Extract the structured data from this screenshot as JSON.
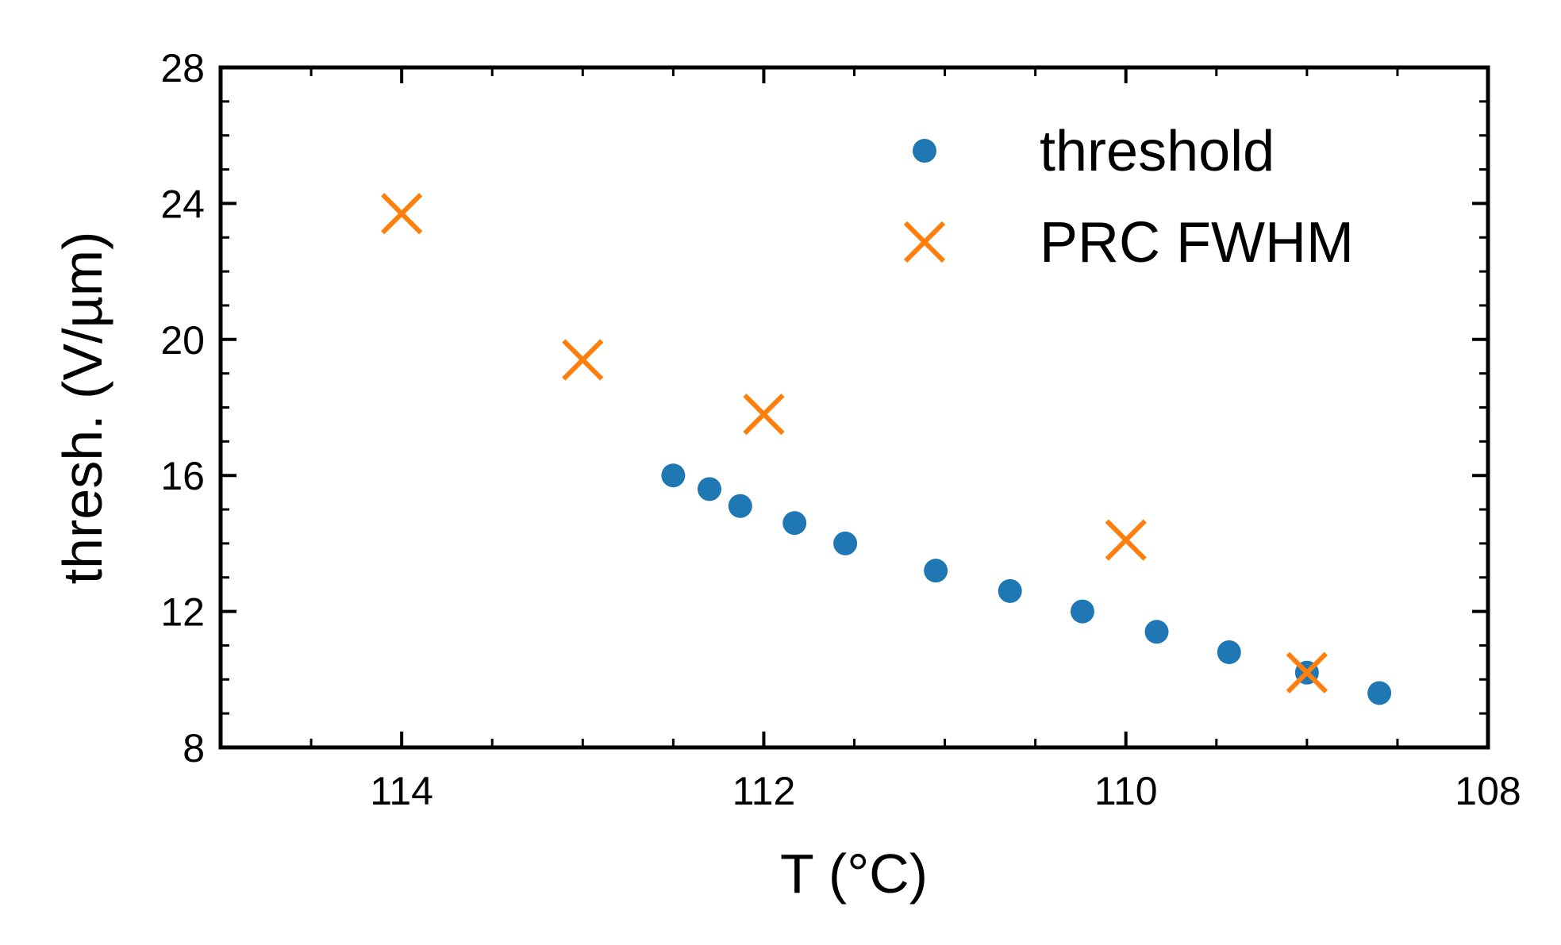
{
  "chart_data": {
    "type": "scatter",
    "xlabel": "T (°C)",
    "ylabel": "thresh. (V/µm)",
    "xlim": [
      115,
      108
    ],
    "ylim": [
      8,
      28
    ],
    "x_inverted": true,
    "x_ticks": [
      114,
      112,
      110,
      108
    ],
    "y_ticks": [
      8,
      12,
      16,
      20,
      24,
      28
    ],
    "grid": false,
    "legend_position": "top-right",
    "series": [
      {
        "name": "threshold",
        "marker": "circle",
        "color": "#1f77b4",
        "x": [
          112.5,
          112.3,
          112.13,
          111.83,
          111.55,
          111.05,
          110.64,
          110.24,
          109.83,
          109.43,
          109.0,
          108.6
        ],
        "y": [
          16.0,
          15.6,
          15.1,
          14.6,
          14.0,
          13.2,
          12.6,
          12.0,
          11.4,
          10.8,
          10.2,
          9.6
        ]
      },
      {
        "name": "PRC FWHM",
        "marker": "x",
        "color": "#ff7f0e",
        "x": [
          114.0,
          113.0,
          112.0,
          110.0,
          109.0
        ],
        "y": [
          23.7,
          19.4,
          17.8,
          14.1,
          10.2
        ]
      }
    ]
  }
}
